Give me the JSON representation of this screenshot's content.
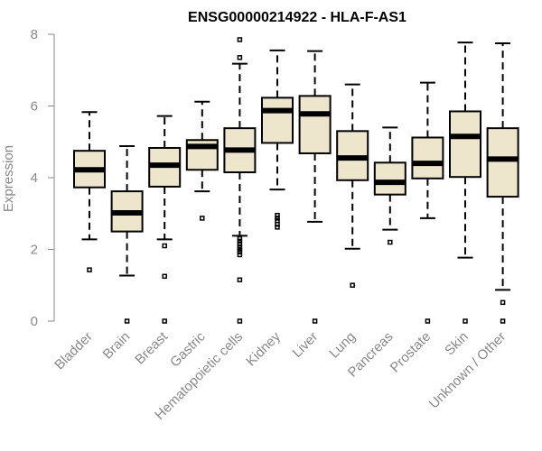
{
  "chart_data": {
    "type": "boxplot",
    "title": "ENSG00000214922 - HLA-F-AS1",
    "ylabel": "Expression",
    "xlabel": "",
    "ylim": [
      0,
      8
    ],
    "yticks": [
      0,
      2,
      4,
      6,
      8
    ],
    "colors": {
      "box_fill": "#ede6cc",
      "box_stroke": "#000000",
      "axis": "#888888"
    },
    "categories": [
      "Bladder",
      "Brain",
      "Breast",
      "Gastric",
      "Hematopoietic cells",
      "Kidney",
      "Liver",
      "Lung",
      "Pancreas",
      "Prostate",
      "Skin",
      "Unknown / Other"
    ],
    "boxes": [
      {
        "category": "Bladder",
        "whisker_low": 2.28,
        "q1": 3.73,
        "median": 4.22,
        "q3": 4.75,
        "whisker_high": 5.83,
        "outliers": [
          1.43
        ]
      },
      {
        "category": "Brain",
        "whisker_low": 1.27,
        "q1": 2.5,
        "median": 3.02,
        "q3": 3.62,
        "whisker_high": 4.88,
        "outliers": [
          0.0
        ]
      },
      {
        "category": "Breast",
        "whisker_low": 2.28,
        "q1": 3.75,
        "median": 4.35,
        "q3": 4.83,
        "whisker_high": 5.72,
        "outliers": [
          2.1,
          1.25,
          0.0
        ]
      },
      {
        "category": "Gastric",
        "whisker_low": 3.62,
        "q1": 4.22,
        "median": 4.87,
        "q3": 5.05,
        "whisker_high": 6.12,
        "outliers": [
          2.87
        ]
      },
      {
        "category": "Hematopoietic cells",
        "whisker_low": 2.38,
        "q1": 4.15,
        "median": 4.77,
        "q3": 5.38,
        "whisker_high": 7.18,
        "outliers": [
          7.85,
          7.35,
          2.3,
          2.23,
          2.15,
          2.07,
          2.0,
          1.93,
          1.85,
          1.15,
          0.0
        ]
      },
      {
        "category": "Kidney",
        "whisker_low": 3.67,
        "q1": 4.97,
        "median": 5.87,
        "q3": 6.23,
        "whisker_high": 7.55,
        "outliers": [
          2.95,
          2.87,
          2.8,
          2.7,
          2.62
        ]
      },
      {
        "category": "Liver",
        "whisker_low": 2.77,
        "q1": 4.68,
        "median": 5.78,
        "q3": 6.28,
        "whisker_high": 7.53,
        "outliers": [
          0.0
        ]
      },
      {
        "category": "Lung",
        "whisker_low": 2.02,
        "q1": 3.93,
        "median": 4.55,
        "q3": 5.3,
        "whisker_high": 6.6,
        "outliers": [
          1.0
        ]
      },
      {
        "category": "Pancreas",
        "whisker_low": 2.55,
        "q1": 3.53,
        "median": 3.87,
        "q3": 4.42,
        "whisker_high": 5.4,
        "outliers": [
          2.2
        ]
      },
      {
        "category": "Prostate",
        "whisker_low": 2.87,
        "q1": 3.98,
        "median": 4.4,
        "q3": 5.12,
        "whisker_high": 6.65,
        "outliers": [
          0.0
        ]
      },
      {
        "category": "Skin",
        "whisker_low": 1.77,
        "q1": 4.02,
        "median": 5.15,
        "q3": 5.85,
        "whisker_high": 7.77,
        "outliers": [
          0.0
        ]
      },
      {
        "category": "Unknown / Other",
        "whisker_low": 0.87,
        "q1": 3.47,
        "median": 4.52,
        "q3": 5.38,
        "whisker_high": 7.75,
        "outliers": [
          0.52,
          0.0
        ]
      }
    ]
  }
}
